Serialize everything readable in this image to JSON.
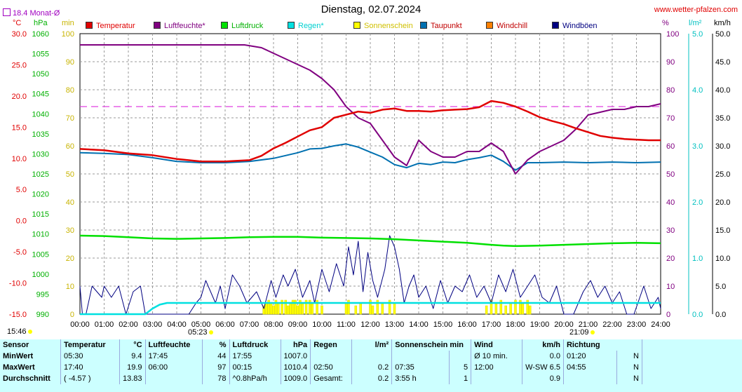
{
  "title": "Dienstag, 02.07.2024",
  "site": "www.wetter-pfalzen.com",
  "monthly_avg_label": "18.4 Monat-Ø",
  "units": {
    "temp": "°C",
    "press": "hPa",
    "sun": "min",
    "hum": "%",
    "rain": "l/m²",
    "wind": "km/h"
  },
  "legend": [
    {
      "label": "Temperatur",
      "color": "#e00000"
    },
    {
      "label": "Luftfeuchte*",
      "color": "#800080"
    },
    {
      "label": "Luftdruck",
      "color": "#00e000"
    },
    {
      "label": "Regen*",
      "color": "#00e0e0"
    },
    {
      "label": "Sonnenschein",
      "color": "#ffff00"
    },
    {
      "label": "Taupunkt",
      "color": "#0070b0"
    },
    {
      "label": "Windchill",
      "color": "#ff8000"
    },
    {
      "label": "Windböen",
      "color": "#000080"
    }
  ],
  "footer": {
    "left_time": "15:46",
    "sunrise": "05:23",
    "sunset": "21:09"
  },
  "chart_data": {
    "type": "line",
    "title": "Dienstag, 02.07.2024",
    "x_ticks": [
      "00:00",
      "01:00",
      "02:00",
      "03:00",
      "04:00",
      "05:00",
      "06:00",
      "07:00",
      "08:00",
      "09:00",
      "10:00",
      "11:00",
      "12:00",
      "13:00",
      "14:00",
      "15:00",
      "16:00",
      "17:00",
      "18:00",
      "19:00",
      "20:00",
      "21:00",
      "22:00",
      "23:00",
      "24:00"
    ],
    "axes": {
      "temp_c": {
        "range": [
          -15,
          30
        ],
        "ticks": [
          "30.0",
          "25.0",
          "20.0",
          "15.0",
          "10.0",
          "5.0",
          "0.0",
          "-5.0",
          "-10.0",
          "-15.0"
        ]
      },
      "pressure_hpa": {
        "range": [
          990,
          1060
        ],
        "ticks": [
          "1060",
          "1055",
          "1050",
          "1045",
          "1040",
          "1035",
          "1030",
          "1025",
          "1020",
          "1015",
          "1010",
          "1005",
          "1000",
          "995",
          "990"
        ]
      },
      "sun_min": {
        "range": [
          0,
          100
        ],
        "ticks": [
          "100",
          "90",
          "80",
          "70",
          "60",
          "50",
          "40",
          "30",
          "20",
          "10",
          "0"
        ]
      },
      "humidity_pct": {
        "range": [
          0,
          100
        ],
        "ticks": [
          "100",
          "90",
          "80",
          "70",
          "60",
          "50",
          "40",
          "30",
          "20",
          "10",
          "0"
        ]
      },
      "rain_lm2": {
        "range": [
          0,
          5
        ],
        "ticks": [
          "5.0",
          "4.0",
          "3.0",
          "2.0",
          "1.0",
          "0.0"
        ]
      },
      "wind_kmh": {
        "range": [
          0,
          50
        ],
        "ticks": [
          "50.0",
          "45.0",
          "40.0",
          "35.0",
          "30.0",
          "25.0",
          "20.0",
          "15.0",
          "10.0",
          "5.0",
          "0.0"
        ]
      }
    },
    "series": [
      {
        "name": "Temperatur",
        "unit": "°C",
        "color": "#e00000",
        "width": 2.5,
        "x": [
          0,
          1,
          2,
          3,
          4,
          5,
          6,
          7,
          7.5,
          8,
          8.5,
          9,
          9.5,
          10,
          10.5,
          11,
          11.5,
          12,
          12.5,
          13,
          13.5,
          14,
          14.5,
          15,
          15.5,
          16,
          16.5,
          17,
          17.5,
          18,
          18.5,
          19,
          19.5,
          20,
          20.5,
          21,
          21.5,
          22,
          22.5,
          23,
          23.5,
          24
        ],
        "y": [
          11.5,
          11.3,
          10.8,
          10.5,
          9.9,
          9.5,
          9.5,
          9.7,
          10.4,
          11.6,
          12.5,
          13.5,
          14.5,
          15.0,
          16.5,
          17.0,
          17.5,
          17.3,
          17.8,
          18.0,
          17.6,
          17.6,
          17.5,
          17.7,
          17.8,
          17.9,
          18.2,
          19.2,
          18.9,
          18.3,
          17.5,
          16.6,
          16.0,
          15.5,
          14.8,
          14.2,
          13.6,
          13.3,
          13.1,
          13.0,
          12.9,
          12.9
        ]
      },
      {
        "name": "Luftfeuchte*",
        "unit": "%",
        "color": "#800080",
        "width": 2,
        "x": [
          0,
          1,
          2,
          3,
          4,
          5,
          6,
          6.8,
          7.5,
          8,
          8.5,
          9,
          9.5,
          10,
          10.5,
          11,
          11.5,
          12,
          12.5,
          13,
          13.5,
          14,
          14.5,
          15,
          15.5,
          16,
          16.5,
          17,
          17.5,
          18,
          18.5,
          19,
          19.5,
          20,
          20.5,
          21,
          21.5,
          22,
          22.5,
          23,
          23.5,
          24
        ],
        "y": [
          96,
          96,
          96,
          96,
          96,
          96,
          96,
          96,
          95,
          93,
          91,
          89,
          87,
          84,
          80,
          74,
          70,
          68,
          62,
          56,
          53,
          62,
          58,
          56,
          56,
          58,
          58,
          61,
          58,
          50,
          55,
          58,
          60,
          62,
          66,
          71,
          72,
          73,
          73,
          74,
          74,
          75
        ]
      },
      {
        "name": "Luftdruck",
        "unit": "hPa",
        "color": "#00e000",
        "width": 2.5,
        "x": [
          0,
          1,
          2,
          3,
          4,
          5,
          6,
          7,
          8,
          9,
          10,
          11,
          12,
          13,
          14,
          15,
          16,
          17,
          17.5,
          18,
          19,
          20,
          21,
          22,
          23,
          24
        ],
        "y": [
          1009.6,
          1009.5,
          1009.2,
          1008.9,
          1008.8,
          1008.9,
          1009.0,
          1009.2,
          1009.3,
          1009.3,
          1009.1,
          1009.0,
          1008.9,
          1008.7,
          1008.4,
          1008.1,
          1007.8,
          1007.3,
          1007.1,
          1007.0,
          1007.1,
          1007.3,
          1007.5,
          1007.7,
          1007.8,
          1007.7
        ]
      },
      {
        "name": "Taupunkt",
        "unit": "°C",
        "color": "#0070b0",
        "width": 2,
        "x": [
          0,
          1,
          2,
          3,
          4,
          5,
          6,
          7,
          8,
          9,
          9.5,
          10,
          10.5,
          11,
          11.5,
          12,
          12.5,
          13,
          13.5,
          14,
          14.5,
          15,
          15.5,
          16,
          16.5,
          17,
          17.5,
          18,
          18.5,
          19,
          20,
          21,
          22,
          23,
          24
        ],
        "y": [
          10.9,
          10.8,
          10.6,
          10.1,
          9.5,
          9.3,
          9.3,
          9.5,
          10.0,
          10.9,
          11.5,
          11.6,
          12.0,
          12.3,
          11.8,
          11.0,
          10.2,
          9.0,
          8.5,
          9.2,
          9.0,
          9.4,
          9.3,
          9.8,
          10.1,
          10.5,
          9.5,
          8.1,
          9.3,
          9.3,
          9.4,
          9.3,
          9.4,
          9.3,
          9.4
        ]
      },
      {
        "name": "Regen*",
        "unit": "l/m²",
        "color": "#00e0e0",
        "width": 2.5,
        "x": [
          0,
          2.7,
          3.0,
          3.3,
          3.6,
          4,
          6,
          8,
          10,
          12,
          14,
          16,
          18,
          20,
          22,
          24
        ],
        "y": [
          0,
          0,
          0.1,
          0.17,
          0.2,
          0.2,
          0.2,
          0.2,
          0.2,
          0.2,
          0.2,
          0.2,
          0.2,
          0.2,
          0.2,
          0.2
        ]
      },
      {
        "name": "Windböen",
        "unit": "km/h",
        "color": "#000080",
        "width": 1,
        "x": [
          0,
          0.1,
          0.25,
          0.5,
          0.9,
          1,
          1.3,
          1.6,
          1.9,
          2.2,
          2.5,
          2.7,
          2.8,
          4.5,
          4.8,
          5.0,
          5.2,
          5.4,
          5.6,
          5.8,
          6.0,
          6.3,
          6.6,
          6.9,
          7.1,
          7.3,
          7.6,
          7.9,
          8.1,
          8.4,
          8.6,
          8.9,
          9.2,
          9.5,
          9.7,
          10,
          10.3,
          10.6,
          10.9,
          11.1,
          11.3,
          11.5,
          11.7,
          11.9,
          12.1,
          12.3,
          12.6,
          12.8,
          13.0,
          13.2,
          13.4,
          13.6,
          13.8,
          14.0,
          14.3,
          14.6,
          14.9,
          15.2,
          15.5,
          15.8,
          16.1,
          16.4,
          16.7,
          17.0,
          17.3,
          17.6,
          17.9,
          18.2,
          18.5,
          18.8,
          19.1,
          19.4,
          19.7,
          20.0,
          20.4,
          20.8,
          21.1,
          21.4,
          21.7,
          22.0,
          22.3,
          22.6,
          22.9,
          23.3,
          23.6,
          23.9,
          24
        ],
        "y": [
          5,
          0,
          0,
          5,
          3,
          5,
          3,
          5,
          0,
          4,
          5,
          0,
          0,
          0,
          2,
          3,
          6,
          4,
          2,
          5,
          1,
          7,
          5,
          2,
          3,
          4,
          1,
          6,
          3,
          7,
          5,
          8,
          3,
          6,
          2,
          8,
          4,
          9,
          5,
          12,
          7,
          13,
          4,
          11,
          6,
          3,
          8,
          14,
          12,
          8,
          2,
          5,
          7,
          3,
          5,
          1,
          6,
          2,
          5,
          4,
          7,
          3,
          5,
          2,
          7,
          4,
          8,
          3,
          5,
          7,
          3,
          2,
          5,
          0,
          0,
          4,
          6,
          3,
          5,
          2,
          4,
          0,
          0,
          5,
          1,
          3,
          1
        ]
      }
    ],
    "sunshine": {
      "name": "Sonnenschein",
      "unit": "min",
      "x": [
        7.6,
        7.7,
        7.8,
        7.9,
        8.0,
        8.1,
        8.2,
        8.35,
        8.5,
        8.6,
        8.7,
        8.8,
        8.9,
        9.0,
        9.1,
        9.2,
        9.35,
        9.5,
        9.6,
        9.8,
        10.0,
        11.0,
        11.1,
        11.4,
        11.6,
        12.0,
        12.1,
        12.3,
        12.5,
        12.8,
        13.0,
        16.8,
        17.0,
        17.2,
        17.4,
        17.6,
        17.8,
        18.0,
        18.2,
        18.3,
        18.5,
        18.6
      ],
      "y": [
        3,
        4,
        5,
        4,
        3,
        5,
        4,
        5,
        5,
        3,
        4,
        5,
        5,
        3,
        5,
        4,
        5,
        5,
        4,
        5,
        3,
        4,
        5,
        3,
        4,
        5,
        3,
        5,
        4,
        5,
        4,
        3,
        5,
        4,
        5,
        3,
        4,
        5,
        5,
        4,
        5,
        3
      ]
    },
    "humidity_ref_line": 74
  },
  "stats": {
    "headers": [
      "Sensor",
      "Temperatur",
      "°C",
      "Luftfeuchte",
      "%",
      "Luftdruck",
      "hPa",
      "Regen",
      "l/m²",
      "Sonnenschein min",
      "Wind",
      "km/h",
      "Richtung"
    ],
    "rows": [
      {
        "label": "MinWert",
        "cells": [
          "05:30",
          "9.4",
          "17:45",
          "44",
          "17:55",
          "1007.0",
          "",
          "",
          "",
          "",
          "Ø 10 min.",
          "0.0",
          "01:20",
          "N"
        ]
      },
      {
        "label": "MaxWert",
        "cells": [
          "17:40",
          "19.9",
          "06:00",
          "97",
          "00:15",
          "1010.4",
          "02:50",
          "0.2",
          "07:35",
          "5",
          "12:00",
          "W-SW 6.5",
          "04:55",
          "N"
        ]
      },
      {
        "label": "Durchschnitt",
        "cells": [
          "( -4.57 )",
          "13.83",
          "",
          "78",
          "^0.8hPa/h",
          "1009.0",
          "Gesamt:",
          "0.2",
          "3:55 h",
          "1",
          "",
          "0.9",
          "",
          "N"
        ]
      }
    ]
  }
}
